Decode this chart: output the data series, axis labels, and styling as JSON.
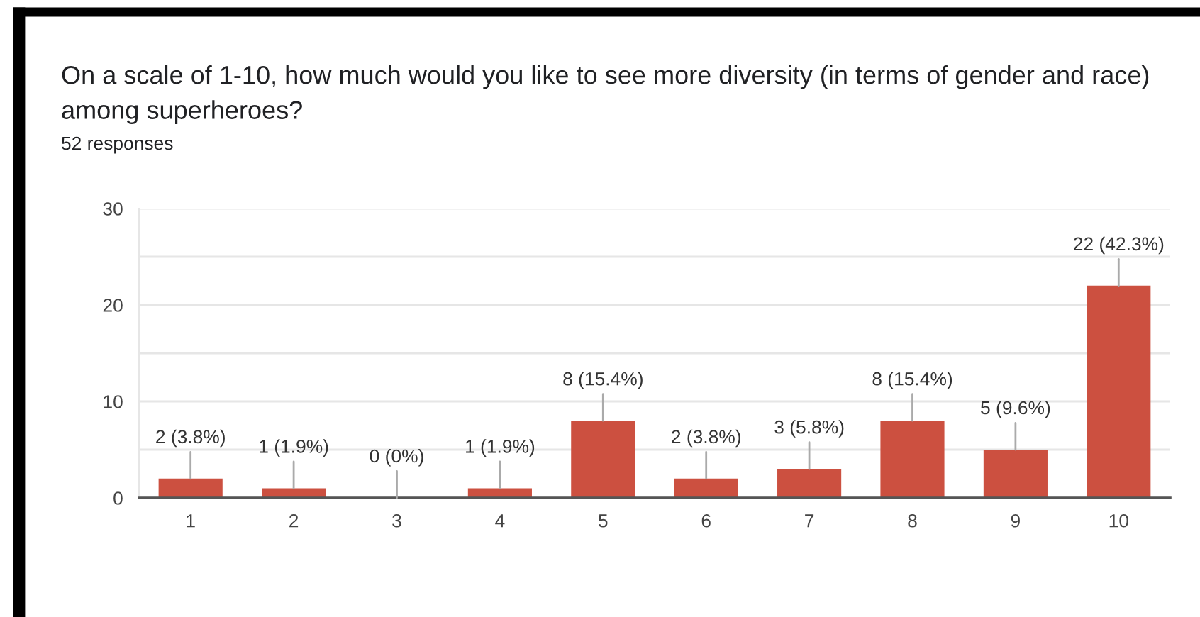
{
  "chart_data": {
    "type": "bar",
    "title": "On a scale of 1-10, how much would you like to see more diversity (in terms of gender and race) among superheroes?",
    "subtitle": "52 responses",
    "categories": [
      "1",
      "2",
      "3",
      "4",
      "5",
      "6",
      "7",
      "8",
      "9",
      "10"
    ],
    "values": [
      2,
      1,
      0,
      1,
      8,
      2,
      3,
      8,
      5,
      22
    ],
    "value_labels": [
      "2 (3.8%)",
      "1 (1.9%)",
      "0 (0%)",
      "1 (1.9%)",
      "8 (15.4%)",
      "2 (3.8%)",
      "3 (5.8%)",
      "8 (15.4%)",
      "5 (9.6%)",
      "22 (42.3%)"
    ],
    "color": "#cc5040",
    "ylim": [
      0,
      30
    ],
    "yticks": [
      0,
      {
        "value": 5,
        "label": null
      },
      10,
      {
        "value": 15,
        "label": null
      },
      20,
      {
        "value": 25,
        "label": null
      },
      30
    ],
    "grid": "y"
  }
}
